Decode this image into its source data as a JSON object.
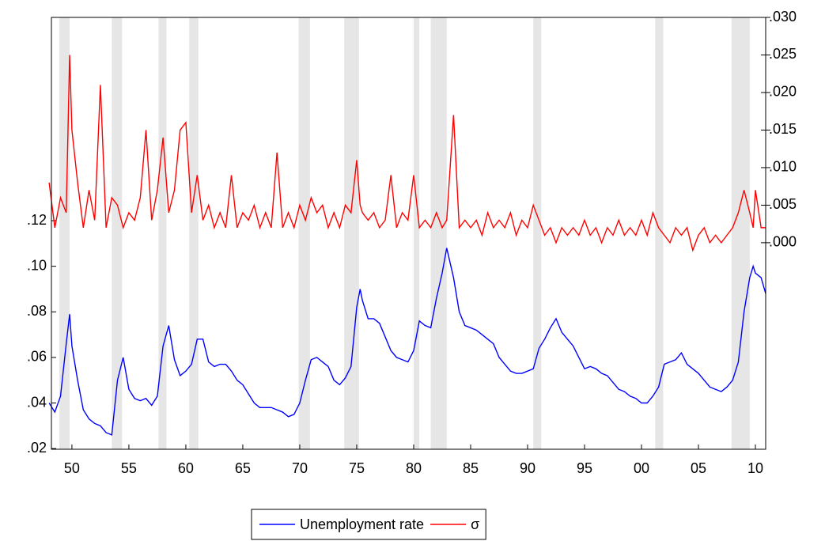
{
  "chart_data": {
    "type": "line",
    "x": [
      1948.0,
      1948.5,
      1949.0,
      1949.5,
      1949.8,
      1950.0,
      1950.5,
      1951.0,
      1951.5,
      1952.0,
      1952.5,
      1953.0,
      1953.5,
      1954.0,
      1954.5,
      1955.0,
      1955.5,
      1956.0,
      1956.5,
      1957.0,
      1957.5,
      1958.0,
      1958.5,
      1959.0,
      1959.5,
      1960.0,
      1960.5,
      1961.0,
      1961.5,
      1962.0,
      1962.5,
      1963.0,
      1963.5,
      1964.0,
      1964.5,
      1965.0,
      1965.5,
      1966.0,
      1966.5,
      1967.0,
      1967.5,
      1968.0,
      1968.5,
      1969.0,
      1969.5,
      1970.0,
      1970.5,
      1971.0,
      1971.5,
      1972.0,
      1972.5,
      1973.0,
      1973.5,
      1974.0,
      1974.5,
      1975.0,
      1975.3,
      1975.5,
      1976.0,
      1976.5,
      1977.0,
      1977.5,
      1978.0,
      1978.5,
      1979.0,
      1979.5,
      1980.0,
      1980.5,
      1981.0,
      1981.5,
      1982.0,
      1982.5,
      1982.9,
      1983.5,
      1984.0,
      1984.5,
      1985.0,
      1985.5,
      1986.0,
      1986.5,
      1987.0,
      1987.5,
      1988.0,
      1988.5,
      1989.0,
      1989.5,
      1990.0,
      1990.5,
      1991.0,
      1991.5,
      1992.0,
      1992.5,
      1993.0,
      1993.5,
      1994.0,
      1994.5,
      1995.0,
      1995.5,
      1996.0,
      1996.5,
      1997.0,
      1997.5,
      1998.0,
      1998.5,
      1999.0,
      1999.5,
      2000.0,
      2000.5,
      2001.0,
      2001.5,
      2002.0,
      2002.5,
      2003.0,
      2003.5,
      2004.0,
      2004.5,
      2005.0,
      2005.5,
      2006.0,
      2006.5,
      2007.0,
      2007.5,
      2008.0,
      2008.5,
      2009.0,
      2009.5,
      2009.8,
      2010.0,
      2010.5,
      2010.9
    ],
    "series": [
      {
        "name": "Unemployment rate",
        "color": "#0000ff",
        "axis": "y",
        "values": [
          0.04,
          0.036,
          0.043,
          0.066,
          0.079,
          0.065,
          0.05,
          0.037,
          0.033,
          0.031,
          0.03,
          0.027,
          0.026,
          0.05,
          0.06,
          0.046,
          0.042,
          0.041,
          0.042,
          0.039,
          0.043,
          0.065,
          0.074,
          0.059,
          0.052,
          0.054,
          0.057,
          0.068,
          0.068,
          0.058,
          0.056,
          0.057,
          0.057,
          0.054,
          0.05,
          0.048,
          0.044,
          0.04,
          0.038,
          0.038,
          0.038,
          0.037,
          0.036,
          0.034,
          0.035,
          0.04,
          0.05,
          0.059,
          0.06,
          0.058,
          0.056,
          0.05,
          0.048,
          0.051,
          0.056,
          0.082,
          0.09,
          0.085,
          0.077,
          0.077,
          0.075,
          0.069,
          0.063,
          0.06,
          0.059,
          0.058,
          0.063,
          0.076,
          0.074,
          0.073,
          0.086,
          0.097,
          0.108,
          0.095,
          0.08,
          0.074,
          0.073,
          0.072,
          0.07,
          0.068,
          0.066,
          0.06,
          0.057,
          0.054,
          0.053,
          0.053,
          0.054,
          0.055,
          0.064,
          0.068,
          0.073,
          0.077,
          0.071,
          0.068,
          0.065,
          0.06,
          0.055,
          0.056,
          0.055,
          0.053,
          0.052,
          0.049,
          0.046,
          0.045,
          0.043,
          0.042,
          0.04,
          0.04,
          0.043,
          0.047,
          0.057,
          0.058,
          0.059,
          0.062,
          0.057,
          0.055,
          0.053,
          0.05,
          0.047,
          0.046,
          0.045,
          0.047,
          0.05,
          0.058,
          0.08,
          0.095,
          0.1,
          0.097,
          0.095,
          0.088
        ]
      },
      {
        "name": "σ",
        "color": "#ff0000",
        "axis": "y2",
        "values": [
          0.008,
          0.002,
          0.006,
          0.004,
          0.025,
          0.015,
          0.008,
          0.002,
          0.007,
          0.003,
          0.021,
          0.002,
          0.006,
          0.005,
          0.002,
          0.004,
          0.003,
          0.006,
          0.015,
          0.003,
          0.007,
          0.014,
          0.004,
          0.007,
          0.015,
          0.016,
          0.004,
          0.009,
          0.003,
          0.005,
          0.002,
          0.004,
          0.002,
          0.009,
          0.002,
          0.004,
          0.003,
          0.005,
          0.002,
          0.004,
          0.002,
          0.012,
          0.002,
          0.004,
          0.002,
          0.005,
          0.003,
          0.006,
          0.004,
          0.005,
          0.002,
          0.004,
          0.002,
          0.005,
          0.004,
          0.011,
          0.005,
          0.004,
          0.003,
          0.004,
          0.002,
          0.003,
          0.009,
          0.002,
          0.004,
          0.003,
          0.009,
          0.002,
          0.003,
          0.002,
          0.004,
          0.002,
          0.003,
          0.017,
          0.002,
          0.003,
          0.002,
          0.003,
          0.001,
          0.004,
          0.002,
          0.003,
          0.002,
          0.004,
          0.001,
          0.003,
          0.002,
          0.005,
          0.003,
          0.001,
          0.002,
          0.0,
          0.002,
          0.001,
          0.002,
          0.001,
          0.003,
          0.001,
          0.002,
          0.0,
          0.002,
          0.001,
          0.003,
          0.001,
          0.002,
          0.001,
          0.003,
          0.001,
          0.004,
          0.002,
          0.001,
          0.0,
          0.002,
          0.001,
          0.002,
          -0.001,
          0.001,
          0.002,
          0.0,
          0.001,
          0.0,
          0.001,
          0.002,
          0.004,
          0.007,
          0.004,
          0.002,
          0.007,
          0.002,
          0.002
        ]
      }
    ],
    "recessions": [
      [
        1948.9,
        1949.8
      ],
      [
        1953.5,
        1954.4
      ],
      [
        1957.6,
        1958.3
      ],
      [
        1960.3,
        1961.1
      ],
      [
        1969.9,
        1970.9
      ],
      [
        1973.9,
        1975.2
      ],
      [
        1980.0,
        1980.5
      ],
      [
        1981.5,
        1982.9
      ],
      [
        1990.5,
        1991.2
      ],
      [
        2001.2,
        2001.9
      ],
      [
        2007.9,
        2009.5
      ]
    ],
    "recession_color": "#e6e6e6",
    "xlim": [
      1948.2,
      2010.9
    ],
    "xticks": [
      {
        "value": 1950,
        "label": "50"
      },
      {
        "value": 1955,
        "label": "55"
      },
      {
        "value": 1960,
        "label": "60"
      },
      {
        "value": 1965,
        "label": "65"
      },
      {
        "value": 1970,
        "label": "70"
      },
      {
        "value": 1975,
        "label": "75"
      },
      {
        "value": 1980,
        "label": "80"
      },
      {
        "value": 1985,
        "label": "85"
      },
      {
        "value": 1990,
        "label": "90"
      },
      {
        "value": 1995,
        "label": "95"
      },
      {
        "value": 2000,
        "label": "00"
      },
      {
        "value": 2005,
        "label": "05"
      },
      {
        "value": 2010,
        "label": "10"
      }
    ],
    "ylim": [
      0.0197,
      0.2092
    ],
    "yticks": [
      {
        "value": 0.02,
        "label": ".02"
      },
      {
        "value": 0.04,
        "label": ".04"
      },
      {
        "value": 0.06,
        "label": ".06"
      },
      {
        "value": 0.08,
        "label": ".08"
      },
      {
        "value": 0.1,
        "label": ".10"
      },
      {
        "value": 0.12,
        "label": ".12"
      }
    ],
    "y2lim": [
      -0.0275,
      0.03
    ],
    "y2ticks": [
      {
        "value": 0.0,
        "label": ".000"
      },
      {
        "value": 0.005,
        "label": ".005"
      },
      {
        "value": 0.01,
        "label": ".010"
      },
      {
        "value": 0.015,
        "label": ".015"
      },
      {
        "value": 0.02,
        "label": ".020"
      },
      {
        "value": 0.025,
        "label": ".025"
      },
      {
        "value": 0.03,
        "label": ".030"
      }
    ]
  }
}
